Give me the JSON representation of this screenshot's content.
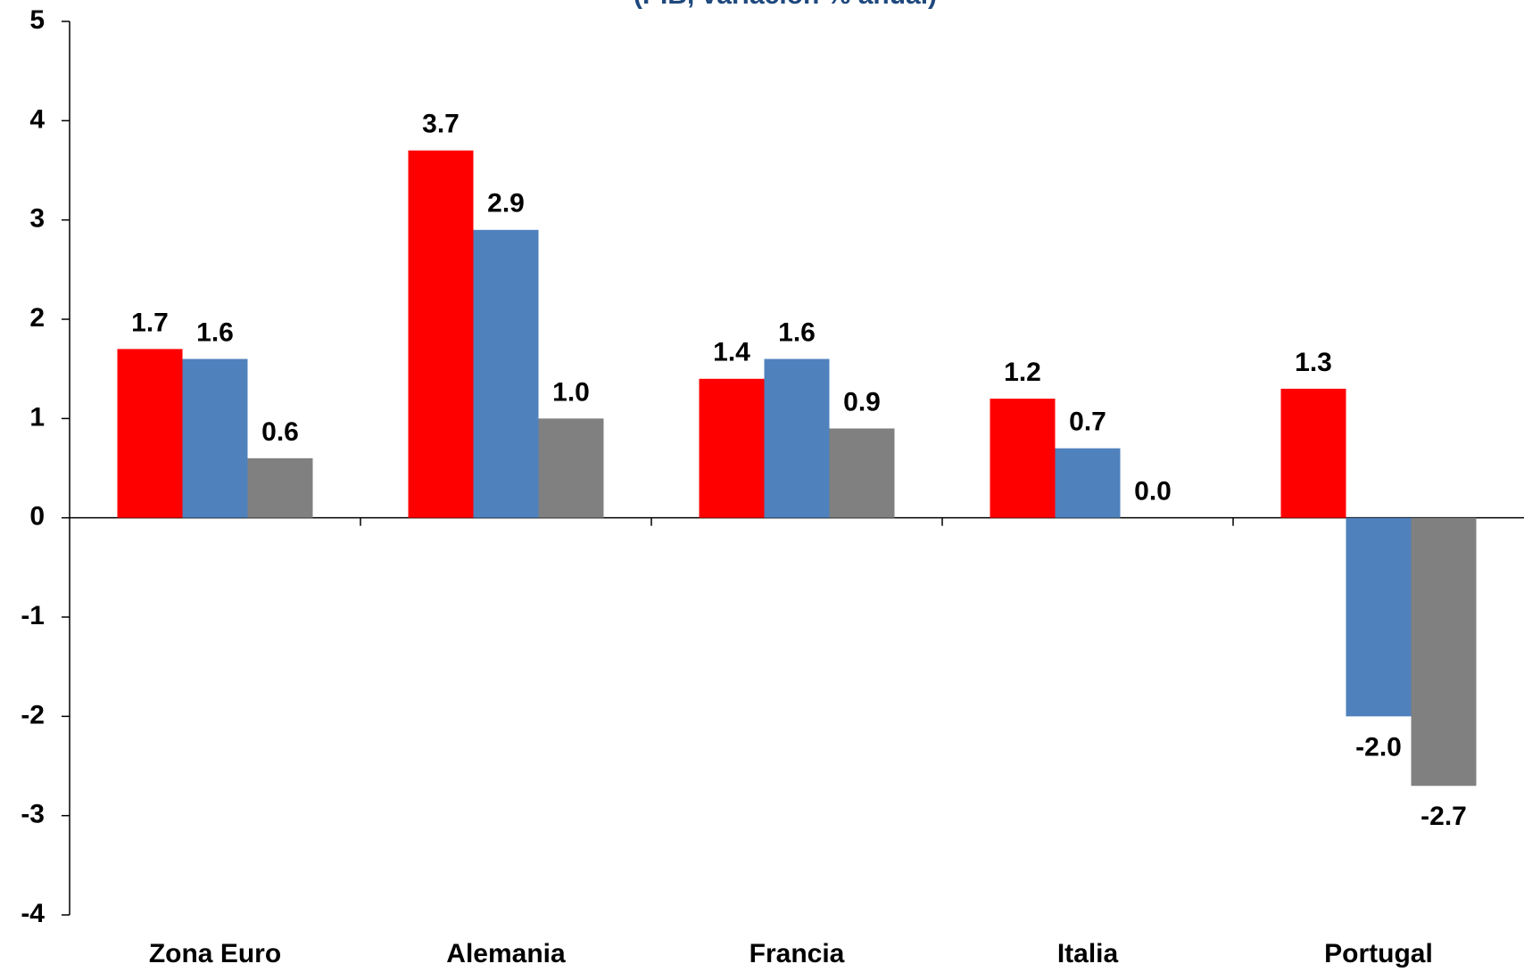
{
  "chart_data": {
    "type": "bar",
    "title": "(PIB, variación  % anual)",
    "categories": [
      "Zona Euro",
      "Alemania",
      "Francia",
      "Italia",
      "Portugal"
    ],
    "series": [
      {
        "color": "#ff0000",
        "values": [
          1.7,
          3.7,
          1.4,
          1.2,
          1.3
        ],
        "value_labels": [
          "1.7",
          "3.7",
          "1.4",
          "1.2",
          "1.3"
        ]
      },
      {
        "color": "#4f81bd",
        "values": [
          1.6,
          2.9,
          1.6,
          0.7,
          -2.0
        ],
        "value_labels": [
          "1.6",
          "2.9",
          "1.6",
          "0.7",
          "-2.0"
        ]
      },
      {
        "color": "#808080",
        "values": [
          0.6,
          1.0,
          0.9,
          0.0,
          -2.7
        ],
        "value_labels": [
          "0.6",
          "1.0",
          "0.9",
          "0.0",
          "-2.7"
        ]
      }
    ],
    "ylim": [
      -4,
      5
    ],
    "yticks": [
      -4,
      -3,
      -2,
      -1,
      0,
      1,
      2,
      3,
      4,
      5
    ],
    "grid": false
  }
}
